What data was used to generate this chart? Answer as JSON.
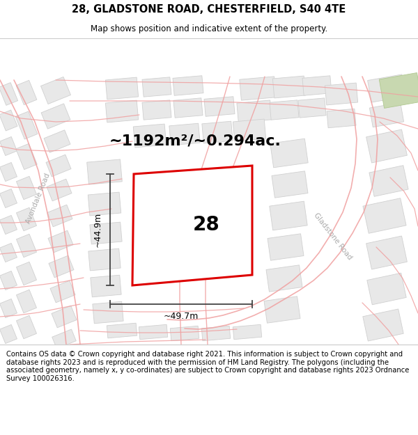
{
  "title_line1": "28, GLADSTONE ROAD, CHESTERFIELD, S40 4TE",
  "title_line2": "Map shows position and indicative extent of the property.",
  "area_text": "~1192m²/~0.294ac.",
  "property_number": "28",
  "dim_vertical": "~44.9m",
  "dim_horizontal": "~49.7m",
  "street_label_avondale": "Avondale Road",
  "street_label_gladstone": "Gladstone Road",
  "footer_text": "Contains OS data © Crown copyright and database right 2021. This information is subject to Crown copyright and database rights 2023 and is reproduced with the permission of HM Land Registry. The polygons (including the associated geometry, namely x, y co-ordinates) are subject to Crown copyright and database rights 2023 Ordnance Survey 100026316.",
  "bg_color": "#ffffff",
  "map_bg_color": "#f9f9f7",
  "road_color": "#f0a0a0",
  "building_color": "#e8e8e8",
  "building_edge_color": "#d0d0d0",
  "property_edge_color": "#dd0000",
  "property_fill_color": "#ffffff",
  "dim_line_color": "#444444",
  "green_color": "#c8d8b0",
  "title_fontsize": 10.5,
  "subtitle_fontsize": 8.5,
  "area_fontsize": 16,
  "property_num_fontsize": 20,
  "dim_fontsize": 9,
  "street_fontsize": 7.5,
  "footer_fontsize": 7.2
}
